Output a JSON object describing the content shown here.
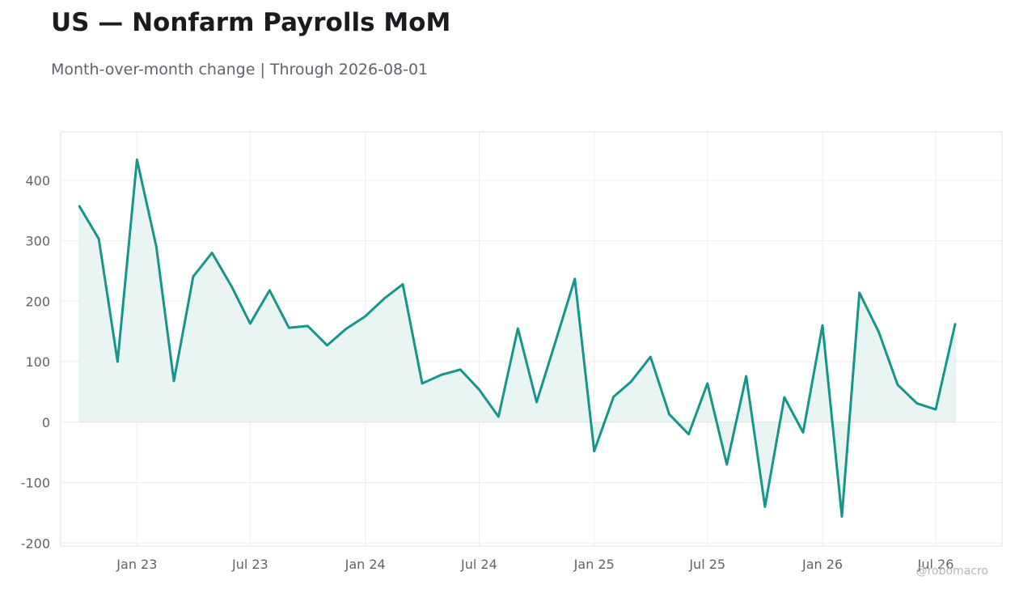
{
  "header": {
    "title": "US — Nonfarm Payrolls MoM",
    "subtitle": "Month-over-month change | Through 2026-08-01"
  },
  "watermark": "@robomacro",
  "colors": {
    "line": "#14968a",
    "fill": "#eaf5f3",
    "grid": "#eeeeee",
    "frame": "#e2e2e2",
    "text": "#60636b"
  },
  "chart_data": {
    "type": "area",
    "title": "US — Nonfarm Payrolls MoM",
    "subtitle": "Month-over-month change | Through 2026-08-01",
    "xlabel": "",
    "ylabel": "",
    "ylim": [
      -205,
      480
    ],
    "xlim": [
      "2022-09-01",
      "2026-10-15"
    ],
    "grid": true,
    "legend": "none",
    "y_ticks": [
      -200,
      -100,
      0,
      100,
      200,
      300,
      400
    ],
    "x_ticks": [
      {
        "date": "2023-01-01",
        "label": "Jan 23"
      },
      {
        "date": "2023-07-01",
        "label": "Jul 23"
      },
      {
        "date": "2024-01-01",
        "label": "Jan 24"
      },
      {
        "date": "2024-07-01",
        "label": "Jul 24"
      },
      {
        "date": "2025-01-01",
        "label": "Jan 25"
      },
      {
        "date": "2025-07-01",
        "label": "Jul 25"
      },
      {
        "date": "2026-01-01",
        "label": "Jan 26"
      },
      {
        "date": "2026-07-01",
        "label": "Jul 26"
      }
    ],
    "series": [
      {
        "x": [
          "2022-10-01",
          "2022-11-01",
          "2022-12-01",
          "2023-01-01",
          "2023-02-01",
          "2023-03-01",
          "2023-04-01",
          "2023-05-01",
          "2023-06-01",
          "2023-07-01",
          "2023-08-01",
          "2023-09-01",
          "2023-10-01",
          "2023-11-01",
          "2023-12-01",
          "2024-01-01",
          "2024-02-01",
          "2024-03-01",
          "2024-04-01",
          "2024-05-01",
          "2024-06-01",
          "2024-07-01",
          "2024-08-01",
          "2024-09-01",
          "2024-10-01",
          "2024-11-01",
          "2024-12-01",
          "2025-01-01",
          "2025-02-01",
          "2025-03-01",
          "2025-04-01",
          "2025-05-01",
          "2025-06-01",
          "2025-07-01",
          "2025-08-01",
          "2025-09-01",
          "2025-10-01",
          "2025-11-01",
          "2025-12-01",
          "2026-01-01",
          "2026-02-01",
          "2026-03-01",
          "2026-04-01",
          "2026-05-01",
          "2026-06-01",
          "2026-07-01",
          "2026-08-01"
        ],
        "values": [
          357,
          303,
          100,
          434,
          290,
          68,
          241,
          280,
          225,
          163,
          218,
          156,
          159,
          127,
          154,
          175,
          205,
          228,
          64,
          78,
          87,
          54,
          9,
          155,
          33,
          136,
          237,
          -48,
          42,
          67,
          108,
          13,
          -20,
          64,
          -70,
          76,
          -140,
          41,
          -17,
          160,
          -156,
          214,
          149,
          62,
          31,
          21,
          162
        ]
      }
    ]
  }
}
